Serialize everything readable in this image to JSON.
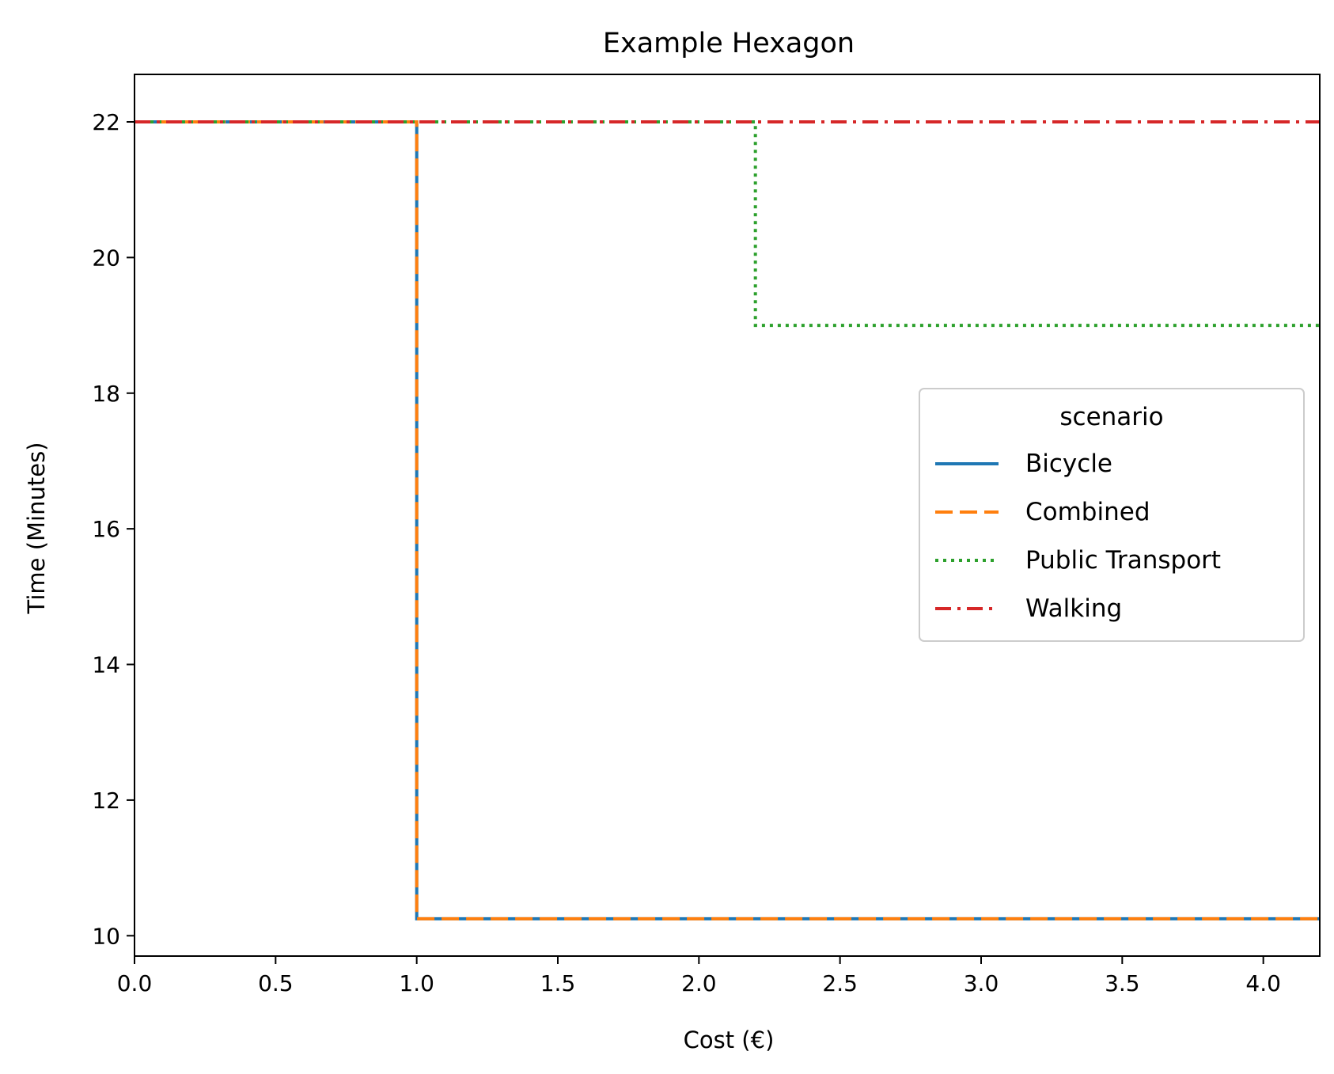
{
  "chart_data": {
    "type": "line",
    "title": "Example Hexagon",
    "xlabel": "Cost (€)",
    "ylabel": "Time (Minutes)",
    "xlim": [
      0.0,
      4.2
    ],
    "ylim": [
      9.7,
      22.7
    ],
    "x_ticks": [
      "0.0",
      "0.5",
      "1.0",
      "1.5",
      "2.0",
      "2.5",
      "3.0",
      "3.5",
      "4.0"
    ],
    "y_ticks": [
      "10",
      "12",
      "14",
      "16",
      "18",
      "20",
      "22"
    ],
    "grid": false,
    "step": true,
    "legend": {
      "title": "scenario",
      "position": "center-right"
    },
    "series": [
      {
        "name": "Bicycle",
        "color": "#1f77b4",
        "style": "solid",
        "x": [
          0.0,
          1.0,
          1.0,
          4.2
        ],
        "y": [
          22.0,
          22.0,
          10.25,
          10.25
        ]
      },
      {
        "name": "Combined",
        "color": "#ff7f0e",
        "style": "dashed",
        "x": [
          0.0,
          1.0,
          1.0,
          4.2
        ],
        "y": [
          22.0,
          22.0,
          10.25,
          10.25
        ]
      },
      {
        "name": "Public Transport",
        "color": "#2ca02c",
        "style": "dotted",
        "x": [
          0.0,
          2.2,
          2.2,
          4.2
        ],
        "y": [
          22.0,
          22.0,
          19.0,
          19.0
        ]
      },
      {
        "name": "Walking",
        "color": "#d62728",
        "style": "dashdot",
        "x": [
          0.0,
          4.2
        ],
        "y": [
          22.0,
          22.0
        ]
      }
    ]
  }
}
